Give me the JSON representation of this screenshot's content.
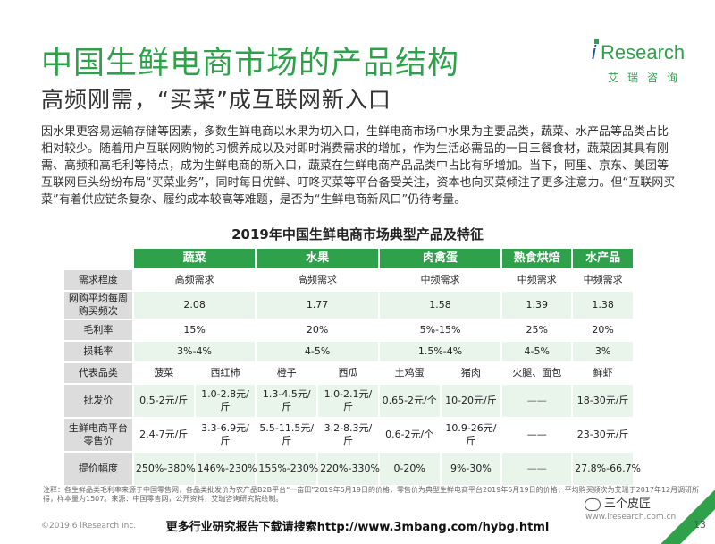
{
  "title": "中国生鲜电商市场的产品结构",
  "subtitle": "高频刚需，“买菜”成互联网新入口",
  "logo": {
    "i": "i",
    "word": "Research",
    "cn": "艾瑞咨询"
  },
  "paragraph": "因水果更容易运输存储等因素，多数生鲜电商以水果为切入口，生鲜电商市场中水果为主要品类，蔬菜、水产品等品类占比相对较少。随着用户互联网购物的习惯养成以及对即时消费需求的增加，作为生活必需品的一日三餐食材，蔬菜因其具有刚需、高频和高毛利等特点，成为生鲜电商的新入口，蔬菜在生鲜电商产品品类中占比有所增加。当下，阿里、京东、美团等互联网巨头纷纷布局“买菜业务”，同时每日优鲜、叮咚买菜等平台备受关注，资本也向买菜倾注了更多注意力。但“互联网买菜”有着供应链条复杂、履约成本较高等难题，是否为“生鲜电商新风口”仍待考量。",
  "table": {
    "title": "2019年中国生鲜电商市场典型产品及特征",
    "headers": [
      "蔬菜",
      "水果",
      "肉禽蛋",
      "熟食烘焙",
      "水产品"
    ],
    "rows": {
      "demand": {
        "label": "需求程度",
        "values": [
          "高频需求",
          "高频需求",
          "中频需求",
          "中频需求",
          "中频需求"
        ]
      },
      "freq": {
        "label": "网购平均每周购买频次",
        "values": [
          "2.08",
          "1.77",
          "1.58",
          "1.39",
          "1.38"
        ]
      },
      "margin": {
        "label": "毛利率",
        "values": [
          "15%",
          "20%",
          "5%-15%",
          "25%",
          "20%"
        ]
      },
      "loss": {
        "label": "损耗率",
        "values": [
          "3%-4%",
          "4-5%",
          "1.5%-4%",
          "4-5%",
          "3%"
        ]
      },
      "items": {
        "label": "代表品类",
        "values": [
          "菠菜",
          "西红柿",
          "橙子",
          "西瓜",
          "土鸡蛋",
          "猪肉",
          "火腿、面包",
          "鲜虾"
        ]
      },
      "wholesale": {
        "label": "批发价",
        "values": [
          "0.5-2元/斤",
          "1.0-2.8元/斤",
          "1.3-4.5元/斤",
          "1.0-2.1元/斤",
          "0.65-2元/个",
          "10-20元/斤",
          "——",
          "18-30元/斤"
        ]
      },
      "retail": {
        "label": "生鲜电商平台零售价",
        "values": [
          "2.4-7元/斤",
          "3.3-6.9元/斤",
          "5.5-11.5元/斤",
          "3.2-8.3元/斤",
          "0.6-2元/个",
          "10.9-26元/斤",
          "——",
          "23-30元/斤"
        ]
      },
      "markup": {
        "label": "提价幅度",
        "values": [
          "250%-380%",
          "146%-230%",
          "155%-230%",
          "220%-330%",
          "0-20%",
          "9%-30%",
          "——",
          "27.8%-66.7%"
        ]
      }
    }
  },
  "note": "注释：各生鲜品类毛利率来源于中国零售网，各品类批发价为农产品B2B平台“一亩田”2019年5月19日的价格，零售价为典型生鲜电商平台2019年5月19日的价格；平均购买频次为艾瑞于2017年12月调研所得，样本量为1507。来源：中国零售网，公开资料，艾瑞咨询研究院绘制。",
  "footer": {
    "copyright": "©2019.6 iResearch Inc.",
    "download": "更多行业研究报告下载请搜索http://www.3mbang.com/hybg.html",
    "url": "www.iresearch.com.cn",
    "wechat": "三个皮匠",
    "page": "13"
  },
  "colors": {
    "accent": "#2ea14a",
    "brand_blue": "#1f4f8a",
    "cell_green": "#e9f5eb",
    "label_gray": "#dcdcdc"
  }
}
